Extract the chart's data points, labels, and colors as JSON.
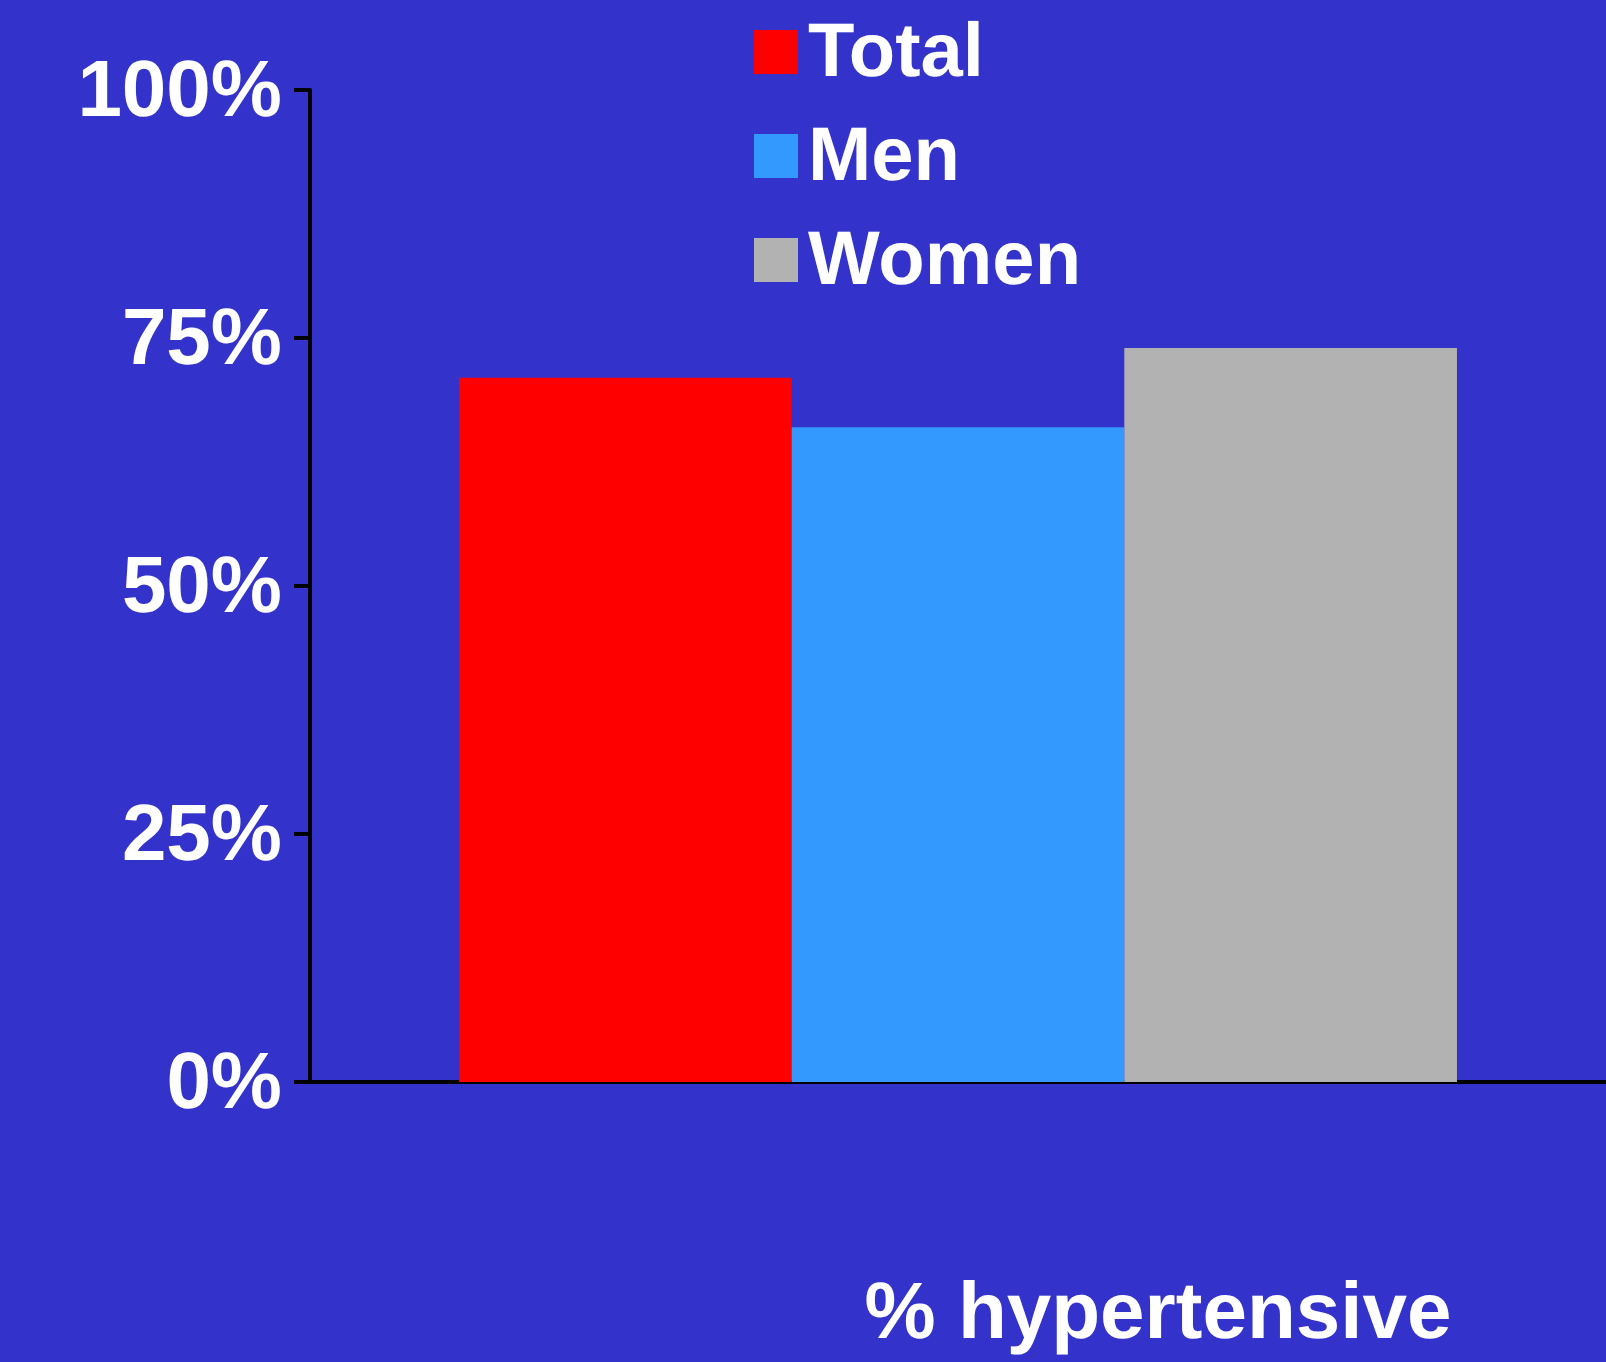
{
  "chart_data": {
    "type": "bar",
    "xlabel": "% hypertensive",
    "categories": [
      null
    ],
    "series": [
      {
        "name": "Total",
        "color": "#ff0000",
        "values": [
          71
        ]
      },
      {
        "name": "Men",
        "color": "#3399ff",
        "values": [
          66
        ]
      },
      {
        "name": "Women",
        "color": "#b2b2b2",
        "values": [
          74
        ]
      }
    ],
    "ylim": [
      0,
      100
    ],
    "yticks": [
      {
        "value": 0,
        "label": "0%"
      },
      {
        "value": 25,
        "label": "25%"
      },
      {
        "value": 50,
        "label": "50%"
      },
      {
        "value": 75,
        "label": "75%"
      },
      {
        "value": 100,
        "label": "100%"
      }
    ],
    "grid": false,
    "legend": "top"
  }
}
